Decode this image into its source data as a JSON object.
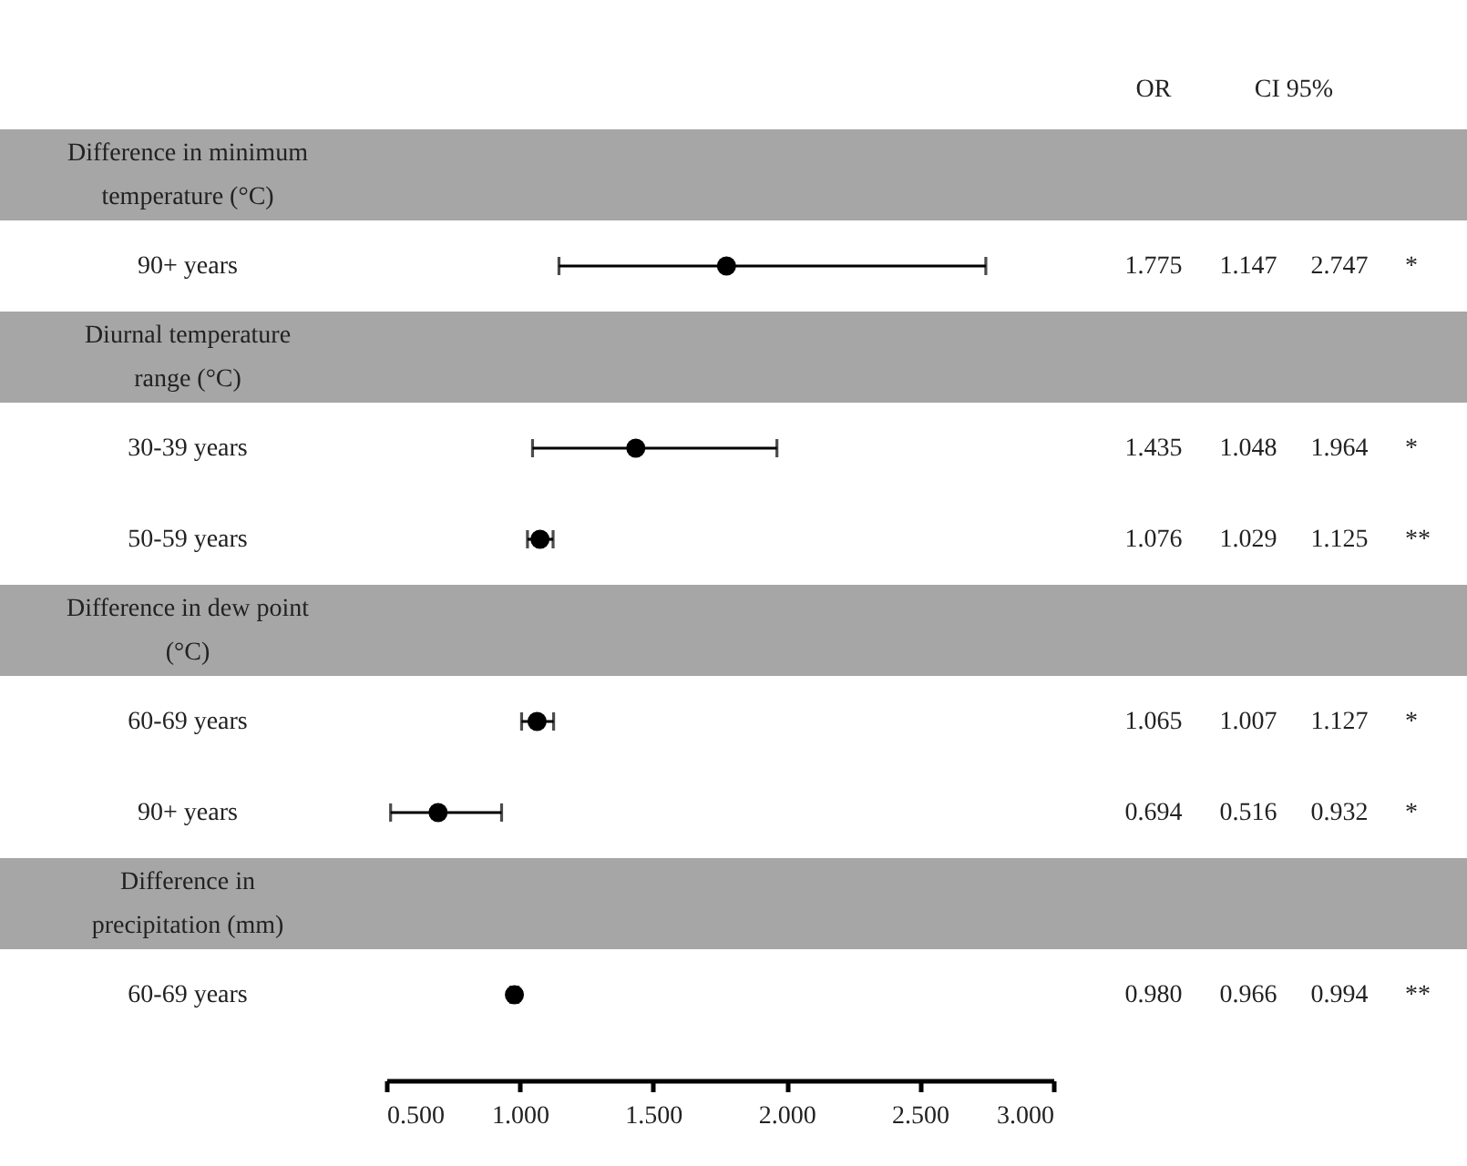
{
  "chart_data": {
    "type": "scatter",
    "orientation": "horizontal",
    "marker": "circle",
    "color": "#000000",
    "categories": [
      "Difference in minimum temperature (°C)",
      "90+ years",
      "Diurnal temperature range (°C)",
      "30-39 years",
      "50-59 years",
      "Difference in dew point (°C)",
      "60-69 years",
      "90+ years",
      "Difference in precipitation (mm)",
      "60-69 years"
    ],
    "values": [
      null,
      1.775,
      null,
      1.435,
      1.076,
      null,
      1.065,
      0.694,
      null,
      0.98
    ],
    "errors": [
      null,
      [
        1.147,
        2.747
      ],
      null,
      [
        1.048,
        1.964
      ],
      [
        1.029,
        1.125
      ],
      null,
      [
        1.007,
        1.127
      ],
      [
        0.516,
        0.932
      ],
      null,
      [
        0.966,
        0.994
      ]
    ],
    "value_labels": [
      null,
      "1.775",
      null,
      "1.435",
      "1.076",
      null,
      "1.065",
      "0.694",
      null,
      "0.980"
    ],
    "xlim": [
      0.5,
      3.0
    ],
    "xticks": [
      {
        "value": 0.5,
        "label": "0.500"
      },
      {
        "value": 1.0,
        "label": "1.000"
      },
      {
        "value": 1.5,
        "label": "1.500"
      },
      {
        "value": 2.0,
        "label": "2.000"
      },
      {
        "value": 2.5,
        "label": "2.500"
      },
      {
        "value": 3.0,
        "label": "3.000"
      }
    ],
    "bands": [
      {
        "axis": "y",
        "from": "Difference in minimum temperature (°C)",
        "to": "Difference in minimum temperature (°C)",
        "color": "#a6a6a6"
      },
      {
        "axis": "y",
        "from": "Diurnal temperature range (°C)",
        "to": "Diurnal temperature range (°C)",
        "color": "#a6a6a6"
      },
      {
        "axis": "y",
        "from": "Difference in dew point (°C)",
        "to": "Difference in dew point (°C)",
        "color": "#a6a6a6"
      },
      {
        "axis": "y",
        "from": "Difference in precipitation (mm)",
        "to": "Difference in precipitation (mm)",
        "color": "#a6a6a6"
      }
    ],
    "annotations": [
      "OR",
      "CI 95%",
      "1.147",
      "2.747",
      "*",
      "1.048",
      "1.964",
      "*",
      "1.029",
      "1.125",
      "**",
      "1.007",
      "1.127",
      "*",
      "0.516",
      "0.932",
      "*",
      "0.966",
      "0.994",
      "**"
    ]
  }
}
